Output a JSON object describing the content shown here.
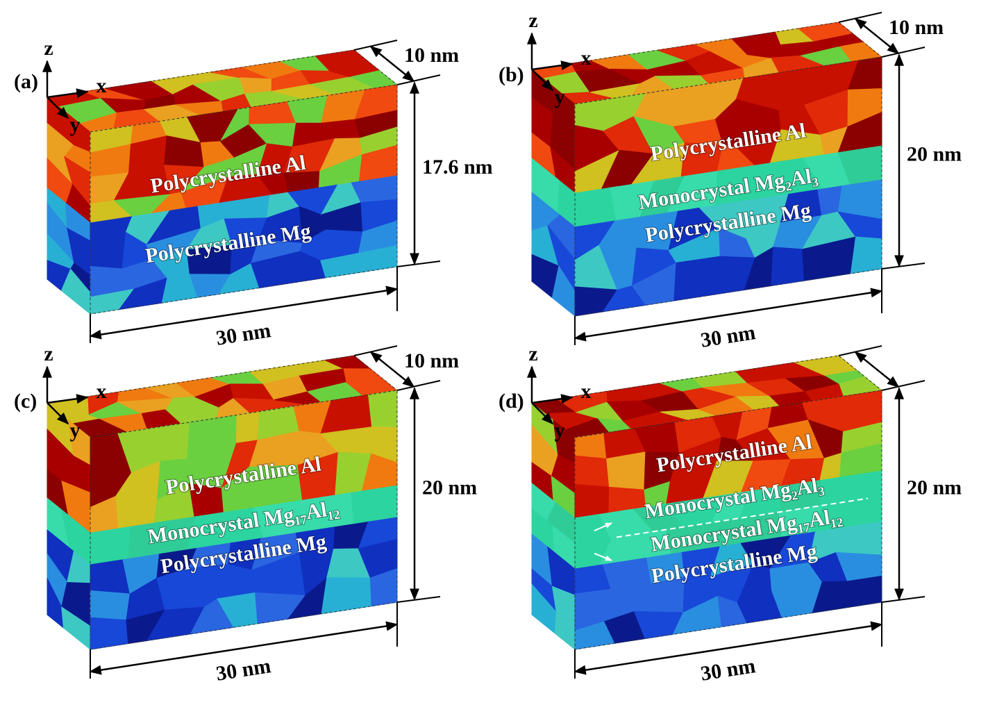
{
  "panels": [
    {
      "label": "(a)",
      "axes": {
        "z": "z",
        "x": "x",
        "y": "y"
      },
      "layers": [
        "Polycrystalline Al",
        "Polycrystalline Mg"
      ],
      "dims": {
        "depth": "10 nm",
        "height": "17.6 nm",
        "width": "30 nm"
      }
    },
    {
      "label": "(b)",
      "axes": {
        "z": "z",
        "x": "x",
        "y": "y"
      },
      "layers": [
        "Polycrystalline Al",
        "Monocrystal Mg₂Al₃",
        "Polycrystalline Mg"
      ],
      "dims": {
        "depth": "10 nm",
        "height": "20 nm",
        "width": "30 nm"
      }
    },
    {
      "label": "(c)",
      "axes": {
        "z": "z",
        "x": "x",
        "y": "y"
      },
      "layers": [
        "Polycrystalline Al",
        "Monocrystal Mg₁₇Al₁₂",
        "Polycrystalline Mg"
      ],
      "dims": {
        "depth": "10 nm",
        "height": "20 nm",
        "width": "30 nm"
      }
    },
    {
      "label": "(d)",
      "axes": {
        "z": "z",
        "x": "x",
        "y": "y"
      },
      "layers": [
        "Polycrystalline Al",
        "Monocrystal Mg₂Al₃",
        "Monocrystal Mg₁₇Al₁₂",
        "Polycrystalline Mg"
      ],
      "dims": {
        "height": "20 nm",
        "width": "30 nm"
      }
    }
  ]
}
